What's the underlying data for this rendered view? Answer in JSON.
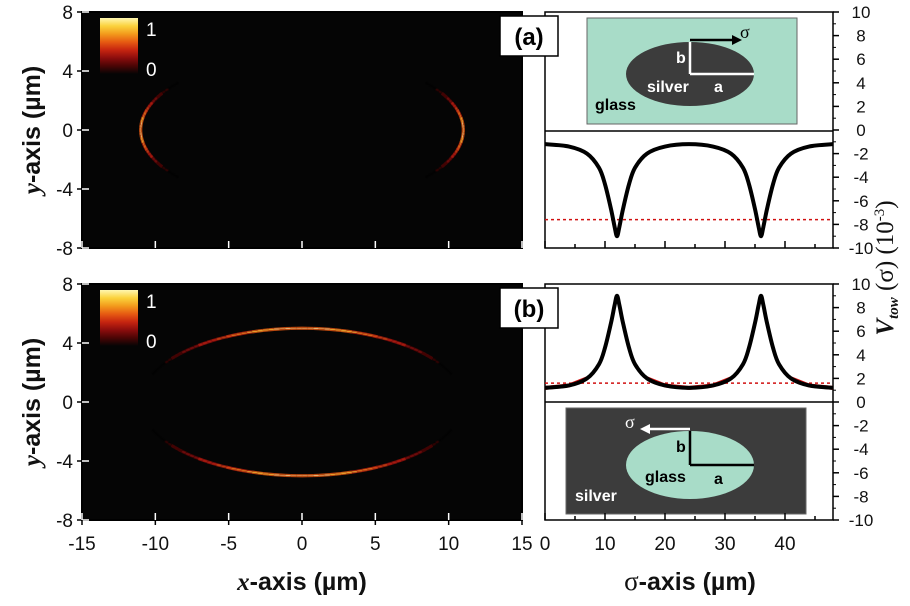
{
  "colors": {
    "background": "#ffffff",
    "heatmap_bg": "#050505",
    "colormap": [
      "#050505",
      "#4a0505",
      "#8b0d0d",
      "#c62410",
      "#e65a12",
      "#f39a1c",
      "#fbd23c",
      "#fff7b0"
    ],
    "glass": "#a8dcc8",
    "silver": "#3c3c3c",
    "curve": "#000000",
    "threshold": "#d01010"
  },
  "chart_data": [
    {
      "type": "heatmap",
      "panel": "a",
      "xlim": [
        -15,
        15
      ],
      "ylim": [
        -8,
        8
      ],
      "yticks": [
        "8",
        "4",
        "0",
        "-4",
        "-8"
      ],
      "ylabel_italic": "y",
      "ylabel_rest": "-axis (µm)",
      "colorbar": {
        "max": "1",
        "min": "0"
      },
      "ellipse": {
        "a": 11,
        "b": 5
      },
      "bright_region": "left/right ends of the ellipse"
    },
    {
      "type": "heatmap",
      "panel": "b",
      "xlim": [
        -15,
        15
      ],
      "ylim": [
        -8,
        8
      ],
      "xticks": [
        "-15",
        "-10",
        "-5",
        "0",
        "5",
        "10",
        "15"
      ],
      "yticks": [
        "8",
        "4",
        "0",
        "-4",
        "-8"
      ],
      "xlabel_italic": "x",
      "xlabel_rest": "-axis (µm)",
      "ylabel_italic": "y",
      "ylabel_rest": "-axis (µm)",
      "colorbar": {
        "max": "1",
        "min": "0"
      },
      "ellipse": {
        "a": 11,
        "b": 5
      },
      "bright_region": "top/bottom of the ellipse"
    },
    {
      "type": "line",
      "panel": "a",
      "label": "(a)",
      "xlim": [
        0,
        48
      ],
      "ylim": [
        -10,
        10
      ],
      "yticks": [
        "10",
        "8",
        "6",
        "4",
        "2",
        "0",
        "-2",
        "-4",
        "-6",
        "-8",
        "-10"
      ],
      "ylabel_v": "V",
      "ylabel_sub": "tow",
      "ylabel_rest": " (σ) (10",
      "ylabel_exp": "-3",
      "ylabel_close": ")",
      "visible_y_range": [
        -10,
        0
      ],
      "series": [
        {
          "x": [
            0,
            4,
            7,
            9,
            10,
            11,
            11.6,
            12,
            12.4,
            13,
            14,
            15,
            17,
            20,
            24,
            28,
            31,
            33,
            34,
            35,
            35.6,
            36,
            36.4,
            37,
            38,
            39,
            41,
            44,
            48
          ],
          "y": [
            -1.2,
            -1.4,
            -2.0,
            -3.2,
            -4.6,
            -6.7,
            -8.2,
            -9.0,
            -8.2,
            -6.7,
            -4.6,
            -3.2,
            -2.0,
            -1.4,
            -1.2,
            -1.4,
            -2.0,
            -3.2,
            -4.6,
            -6.7,
            -8.2,
            -9.0,
            -8.2,
            -6.7,
            -4.6,
            -3.2,
            -2.0,
            -1.4,
            -1.2
          ]
        }
      ],
      "threshold": -7.6,
      "inset": {
        "outer_label": "glass",
        "inner_label": "silver",
        "a_label": "a",
        "b_label": "b",
        "sigma_label": "σ"
      }
    },
    {
      "type": "line",
      "panel": "b",
      "label": "(b)",
      "xlim": [
        0,
        48
      ],
      "ylim": [
        -10,
        10
      ],
      "xticks": [
        "0",
        "10",
        "20",
        "30",
        "40"
      ],
      "xlabel_sigma": "σ",
      "xlabel_rest": "-axis (µm)",
      "yticks": [
        "10",
        "8",
        "6",
        "4",
        "2",
        "0",
        "-2",
        "-4",
        "-6",
        "-8",
        "-10"
      ],
      "visible_y_range": [
        0,
        10
      ],
      "series": [
        {
          "x": [
            0,
            4,
            7,
            9,
            10,
            11,
            11.6,
            12,
            12.4,
            13,
            14,
            15,
            17,
            20,
            24,
            28,
            31,
            33,
            34,
            35,
            35.6,
            36,
            36.4,
            37,
            38,
            39,
            41,
            44,
            48
          ],
          "y": [
            1.2,
            1.4,
            2.0,
            3.2,
            4.6,
            6.7,
            8.2,
            9.0,
            8.2,
            6.7,
            4.6,
            3.2,
            2.0,
            1.4,
            1.2,
            1.4,
            2.0,
            3.2,
            4.6,
            6.7,
            8.2,
            9.0,
            8.2,
            6.7,
            4.6,
            3.2,
            2.0,
            1.4,
            1.2
          ]
        }
      ],
      "threshold": 1.6,
      "inset": {
        "outer_label": "silver",
        "inner_label": "glass",
        "a_label": "a",
        "b_label": "b",
        "sigma_label": "σ"
      }
    }
  ]
}
